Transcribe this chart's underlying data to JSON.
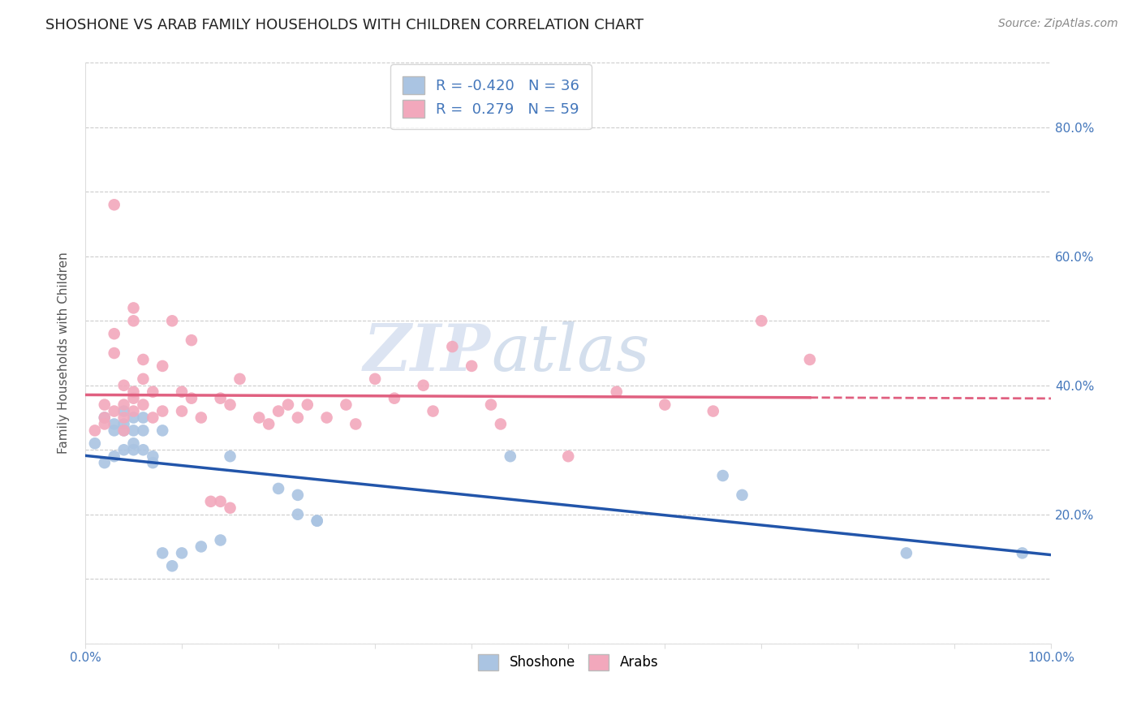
{
  "title": "SHOSHONE VS ARAB FAMILY HOUSEHOLDS WITH CHILDREN CORRELATION CHART",
  "source": "Source: ZipAtlas.com",
  "ylabel": "Family Households with Children",
  "xlim": [
    0,
    1.0
  ],
  "ylim": [
    0,
    0.9
  ],
  "shoshone_color": "#aac4e2",
  "arab_color": "#f2a8bc",
  "shoshone_line_color": "#2255aa",
  "arab_line_color": "#e06080",
  "R_shoshone": -0.42,
  "N_shoshone": 36,
  "R_arab": 0.279,
  "N_arab": 59,
  "watermark": "ZIPatlas",
  "legend_label_shoshone": "R = -0.420   N = 36",
  "legend_label_arab": "R =  0.279   N = 59",
  "shoshone_x": [
    0.01,
    0.02,
    0.02,
    0.03,
    0.03,
    0.03,
    0.04,
    0.04,
    0.04,
    0.04,
    0.05,
    0.05,
    0.05,
    0.05,
    0.06,
    0.06,
    0.06,
    0.07,
    0.07,
    0.08,
    0.08,
    0.09,
    0.1,
    0.12,
    0.14,
    0.15,
    0.2,
    0.22,
    0.22,
    0.24,
    0.24,
    0.44,
    0.66,
    0.68,
    0.85,
    0.97
  ],
  "shoshone_y": [
    0.31,
    0.35,
    0.28,
    0.34,
    0.33,
    0.29,
    0.36,
    0.34,
    0.33,
    0.3,
    0.35,
    0.33,
    0.31,
    0.3,
    0.35,
    0.33,
    0.3,
    0.29,
    0.28,
    0.33,
    0.14,
    0.12,
    0.14,
    0.15,
    0.16,
    0.29,
    0.24,
    0.23,
    0.2,
    0.19,
    0.19,
    0.29,
    0.26,
    0.23,
    0.14,
    0.14
  ],
  "arab_x": [
    0.01,
    0.02,
    0.02,
    0.02,
    0.03,
    0.03,
    0.03,
    0.03,
    0.04,
    0.04,
    0.04,
    0.04,
    0.05,
    0.05,
    0.05,
    0.05,
    0.05,
    0.06,
    0.06,
    0.06,
    0.07,
    0.07,
    0.08,
    0.08,
    0.09,
    0.1,
    0.1,
    0.11,
    0.11,
    0.12,
    0.13,
    0.14,
    0.14,
    0.15,
    0.15,
    0.16,
    0.18,
    0.19,
    0.2,
    0.21,
    0.22,
    0.23,
    0.25,
    0.27,
    0.28,
    0.3,
    0.32,
    0.35,
    0.36,
    0.38,
    0.4,
    0.42,
    0.43,
    0.5,
    0.55,
    0.6,
    0.65,
    0.7,
    0.75
  ],
  "arab_y": [
    0.33,
    0.37,
    0.35,
    0.34,
    0.68,
    0.48,
    0.45,
    0.36,
    0.4,
    0.37,
    0.35,
    0.33,
    0.52,
    0.5,
    0.39,
    0.38,
    0.36,
    0.44,
    0.41,
    0.37,
    0.39,
    0.35,
    0.36,
    0.43,
    0.5,
    0.39,
    0.36,
    0.38,
    0.47,
    0.35,
    0.22,
    0.22,
    0.38,
    0.37,
    0.21,
    0.41,
    0.35,
    0.34,
    0.36,
    0.37,
    0.35,
    0.37,
    0.35,
    0.37,
    0.34,
    0.41,
    0.38,
    0.4,
    0.36,
    0.46,
    0.43,
    0.37,
    0.34,
    0.29,
    0.39,
    0.37,
    0.36,
    0.5,
    0.44
  ]
}
